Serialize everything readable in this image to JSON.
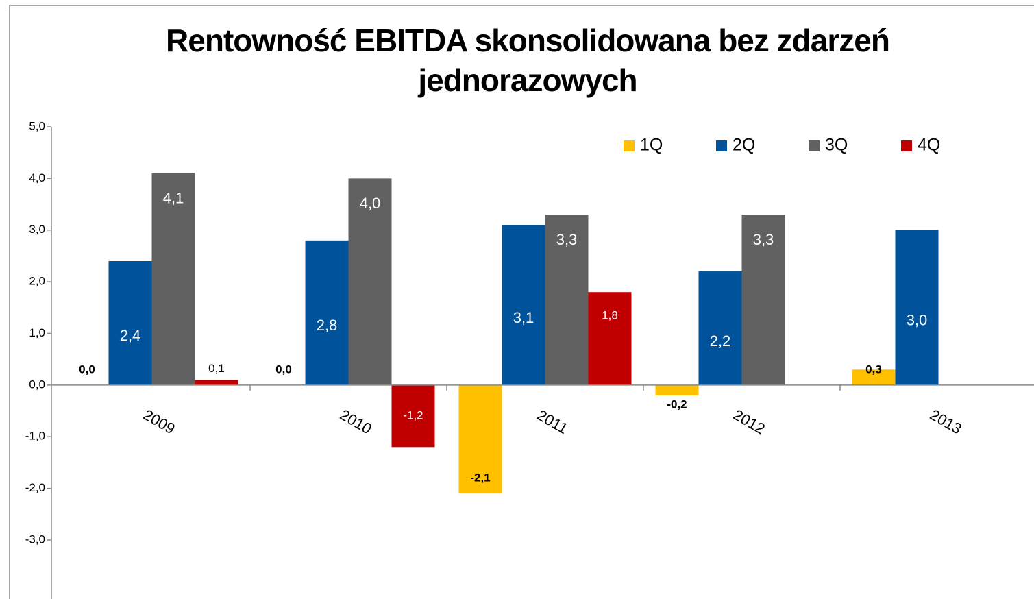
{
  "chart_data": {
    "type": "bar",
    "title": "Rentowność EBITDA  skonsolidowana bez zdarzeń jednorazowych",
    "categories": [
      "2009",
      "2010",
      "2011",
      "2012",
      "2013"
    ],
    "series": [
      {
        "name": "1Q",
        "color": "#ffc000",
        "values": [
          0.0,
          0.0,
          -2.1,
          -0.2,
          0.3
        ],
        "value_labels": [
          "0,0",
          "0,0",
          "-2,1",
          "-0,2",
          "0,3"
        ]
      },
      {
        "name": "2Q",
        "color": "#00529b",
        "values": [
          2.4,
          2.8,
          3.1,
          2.2,
          3.0
        ],
        "value_labels": [
          "2,4",
          "2,8",
          "3,1",
          "2,2",
          "3,0"
        ]
      },
      {
        "name": "3Q",
        "color": "#616161",
        "values": [
          4.1,
          4.0,
          3.3,
          3.3,
          null
        ],
        "value_labels": [
          "4,1",
          "4,0",
          "3,3",
          "3,3",
          null
        ]
      },
      {
        "name": "4Q",
        "color": "#c00000",
        "values": [
          0.1,
          -1.2,
          1.8,
          null,
          null
        ],
        "value_labels": [
          "0,1",
          "-1,2",
          "1,8",
          null,
          null
        ]
      }
    ],
    "ylim": [
      -3,
      5
    ],
    "yticks": [
      {
        "value": -3,
        "label": "-3,0"
      },
      {
        "value": -2,
        "label": "-2,0"
      },
      {
        "value": -1,
        "label": "-1,0"
      },
      {
        "value": 0,
        "label": "0,0"
      },
      {
        "value": 1,
        "label": "1,0"
      },
      {
        "value": 2,
        "label": "2,0"
      },
      {
        "value": 3,
        "label": "3,0"
      },
      {
        "value": 4,
        "label": "4,0"
      },
      {
        "value": 5,
        "label": "5,0"
      }
    ],
    "legend": "top-right"
  }
}
